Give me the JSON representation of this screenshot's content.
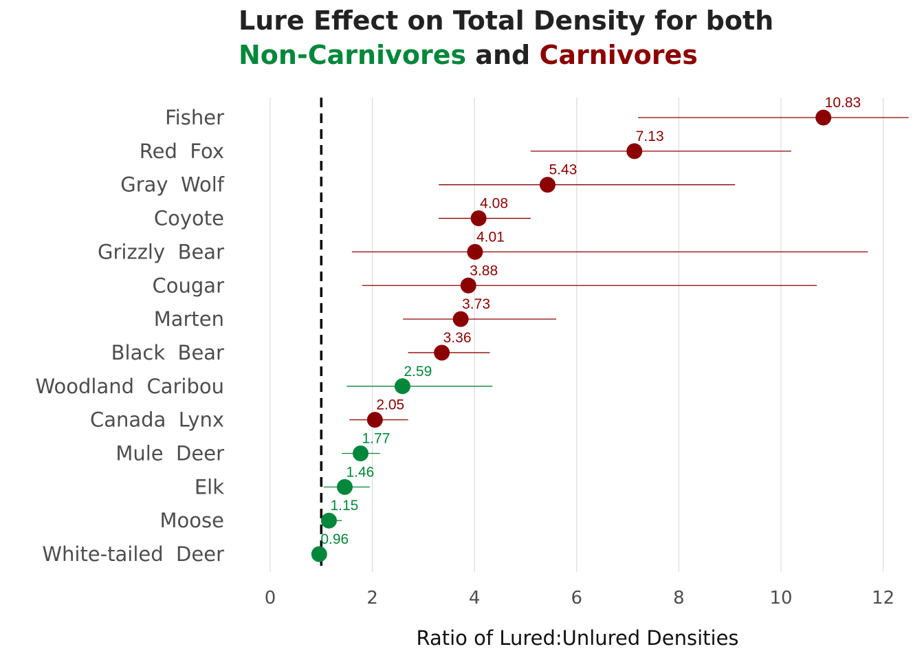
{
  "colors": {
    "non_carnivore": "#03873A",
    "carnivore": "#8B0000",
    "grid": "#DEDEDE",
    "reference_line": "#000000"
  },
  "title": {
    "line1": "Lure Effect on Total Density for both",
    "line2_part1": "Non-Carnivores",
    "line2_part2": "and",
    "line2_part3": "Carnivores"
  },
  "chart_data": {
    "type": "scatter",
    "title": "Lure Effect on Total Density for both Non-Carnivores and Carnivores",
    "xlabel": "Ratio of Lured:Unlured Densities",
    "ylabel": "",
    "xlim": [
      0,
      12.5
    ],
    "x_ticks": [
      0,
      2,
      4,
      6,
      8,
      10,
      12
    ],
    "grid": "vertical",
    "reference_line_x": 1,
    "groups": [
      "Non-Carnivores",
      "Carnivores"
    ],
    "points": [
      {
        "species": "Fisher",
        "value": 10.83,
        "value_label": "10.83",
        "low": 7.2,
        "high": 12.5,
        "group": "Carnivores"
      },
      {
        "species": "Red  Fox",
        "value": 7.13,
        "value_label": "7.13",
        "low": 5.1,
        "high": 10.2,
        "group": "Carnivores"
      },
      {
        "species": "Gray  Wolf",
        "value": 5.43,
        "value_label": "5.43",
        "low": 3.3,
        "high": 9.1,
        "group": "Carnivores"
      },
      {
        "species": "Coyote",
        "value": 4.08,
        "value_label": "4.08",
        "low": 3.3,
        "high": 5.1,
        "group": "Carnivores"
      },
      {
        "species": "Grizzly  Bear",
        "value": 4.01,
        "value_label": "4.01",
        "low": 1.6,
        "high": 11.7,
        "group": "Carnivores"
      },
      {
        "species": "Cougar",
        "value": 3.88,
        "value_label": "3.88",
        "low": 1.8,
        "high": 10.7,
        "group": "Carnivores"
      },
      {
        "species": "Marten",
        "value": 3.73,
        "value_label": "3.73",
        "low": 2.6,
        "high": 5.6,
        "group": "Carnivores"
      },
      {
        "species": "Black  Bear",
        "value": 3.36,
        "value_label": "3.36",
        "low": 2.7,
        "high": 4.3,
        "group": "Carnivores"
      },
      {
        "species": "Woodland  Caribou",
        "value": 2.59,
        "value_label": "2.59",
        "low": 1.5,
        "high": 4.35,
        "group": "Non-Carnivores"
      },
      {
        "species": "Canada  Lynx",
        "value": 2.05,
        "value_label": "2.05",
        "low": 1.55,
        "high": 2.7,
        "group": "Carnivores"
      },
      {
        "species": "Mule  Deer",
        "value": 1.77,
        "value_label": "1.77",
        "low": 1.4,
        "high": 2.15,
        "group": "Non-Carnivores"
      },
      {
        "species": "Elk",
        "value": 1.46,
        "value_label": "1.46",
        "low": 1.05,
        "high": 1.95,
        "group": "Non-Carnivores"
      },
      {
        "species": "Moose",
        "value": 1.15,
        "value_label": "1.15",
        "low": 1.0,
        "high": 1.4,
        "group": "Non-Carnivores"
      },
      {
        "species": "White-tailed  Deer",
        "value": 0.96,
        "value_label": "0.96",
        "low": 0.9,
        "high": 1.05,
        "group": "Non-Carnivores"
      }
    ]
  }
}
